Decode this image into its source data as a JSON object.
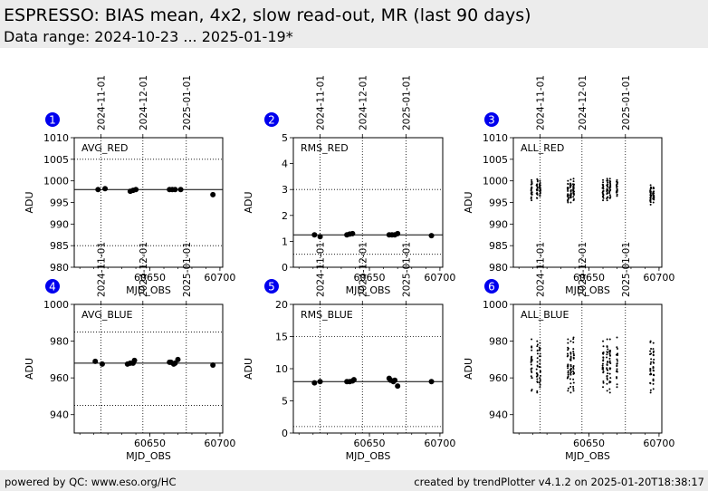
{
  "header": {
    "title": "ESPRESSO: BIAS mean, 4x2, slow read-out, MR (last 90 days)",
    "subtitle": "Data range: 2024-10-23 ... 2025-01-19*"
  },
  "footer": {
    "left": "powered by QC: www.eso.org/HC",
    "right": "created by trendPlotter v4.1.2 on 2025-01-20T18:38:17"
  },
  "colors": {
    "marker": "#000000",
    "badge": "#0000ee",
    "header_bg": "#ececec"
  },
  "chart_data": [
    {
      "type": "scatter",
      "panel": "1",
      "label": "AVG_RED",
      "xlabel": "MJD_OBS",
      "ylabel": "ADU",
      "xlim": [
        60596,
        60702
      ],
      "ylim": [
        980,
        1010
      ],
      "yticks": [
        980,
        985,
        990,
        995,
        1000,
        1005,
        1010
      ],
      "xticks": [
        60650,
        60700
      ],
      "date_ticks": [
        {
          "mjd": 60615,
          "label": "2024-11-01"
        },
        {
          "mjd": 60645,
          "label": "2024-12-01"
        },
        {
          "mjd": 60676,
          "label": "2025-01-01"
        }
      ],
      "ref_line": 998.0,
      "hlines": [
        985,
        1005
      ],
      "x": [
        60613,
        60618,
        60636,
        60638,
        60640,
        60664,
        60666,
        60668,
        60672,
        60695
      ],
      "y": [
        998.0,
        998.2,
        997.6,
        997.8,
        998.0,
        998.0,
        998.0,
        998.0,
        998.0,
        996.8
      ],
      "style": "large"
    },
    {
      "type": "scatter",
      "panel": "2",
      "label": "RMS_RED",
      "xlabel": "MJD_OBS",
      "ylabel": "ADU",
      "xlim": [
        60596,
        60702
      ],
      "ylim": [
        0,
        5
      ],
      "yticks": [
        0,
        1,
        2,
        3,
        4,
        5
      ],
      "xticks": [
        60650,
        60700
      ],
      "date_ticks": [
        {
          "mjd": 60615,
          "label": "2024-11-01"
        },
        {
          "mjd": 60645,
          "label": "2024-12-01"
        },
        {
          "mjd": 60676,
          "label": "2025-01-01"
        }
      ],
      "ref_line": 1.25,
      "hlines": [
        0.5,
        3.0
      ],
      "x": [
        60611,
        60615,
        60634,
        60636,
        60638,
        60664,
        60666,
        60668,
        60670,
        60694
      ],
      "y": [
        1.25,
        1.18,
        1.25,
        1.28,
        1.3,
        1.25,
        1.25,
        1.25,
        1.3,
        1.22
      ],
      "style": "large"
    },
    {
      "type": "scatter",
      "panel": "3",
      "label": "ALL_RED",
      "xlabel": "MJD_OBS",
      "ylabel": "ADU",
      "xlim": [
        60596,
        60702
      ],
      "ylim": [
        980,
        1010
      ],
      "yticks": [
        980,
        985,
        990,
        995,
        1000,
        1005,
        1010
      ],
      "xticks": [
        60650,
        60700
      ],
      "date_ticks": [
        {
          "mjd": 60615,
          "label": "2024-11-01"
        },
        {
          "mjd": 60645,
          "label": "2024-12-01"
        },
        {
          "mjd": 60676,
          "label": "2025-01-01"
        }
      ],
      "ref_line": null,
      "hlines": [],
      "groups": [
        {
          "x": 60609,
          "min": 995.5,
          "max": 1000.2
        },
        {
          "x": 60613,
          "min": 996.0,
          "max": 1000.4
        },
        {
          "x": 60615,
          "min": 996.5,
          "max": 1000.0
        },
        {
          "x": 60635,
          "min": 995.0,
          "max": 1000.0
        },
        {
          "x": 60637,
          "min": 995.0,
          "max": 1000.3
        },
        {
          "x": 60639,
          "min": 995.5,
          "max": 1000.5
        },
        {
          "x": 60660,
          "min": 995.5,
          "max": 1000.2
        },
        {
          "x": 60663,
          "min": 995.5,
          "max": 1000.5
        },
        {
          "x": 60665,
          "min": 996.0,
          "max": 1000.5
        },
        {
          "x": 60670,
          "min": 996.5,
          "max": 1000.2
        },
        {
          "x": 60694,
          "min": 994.5,
          "max": 999.0
        },
        {
          "x": 60696,
          "min": 995.0,
          "max": 998.5
        }
      ],
      "style": "small"
    },
    {
      "type": "scatter",
      "panel": "4",
      "label": "AVG_BLUE",
      "xlabel": "MJD_OBS",
      "ylabel": "ADU",
      "xlim": [
        60596,
        60702
      ],
      "ylim": [
        930,
        1000
      ],
      "yticks": [
        940,
        960,
        980,
        1000
      ],
      "xticks": [
        60650,
        60700
      ],
      "date_ticks": [
        {
          "mjd": 60615,
          "label": "2024-11-01"
        },
        {
          "mjd": 60645,
          "label": "2024-12-01"
        },
        {
          "mjd": 60676,
          "label": "2025-01-01"
        }
      ],
      "ref_line": 968.0,
      "hlines": [
        945,
        985
      ],
      "x": [
        60611,
        60616,
        60634,
        60636,
        60638,
        60639,
        60664,
        60665,
        60667,
        60668,
        60670,
        60695
      ],
      "y": [
        969.0,
        967.5,
        967.5,
        968.0,
        968.0,
        969.5,
        968.5,
        968.5,
        967.5,
        968.0,
        970.0,
        967.0
      ],
      "style": "large"
    },
    {
      "type": "scatter",
      "panel": "5",
      "label": "RMS_BLUE",
      "xlabel": "MJD_OBS",
      "ylabel": "ADU",
      "xlim": [
        60596,
        60702
      ],
      "ylim": [
        0,
        20
      ],
      "yticks": [
        0,
        5,
        10,
        15,
        20
      ],
      "xticks": [
        60650,
        60700
      ],
      "date_ticks": [
        {
          "mjd": 60615,
          "label": "2024-11-01"
        },
        {
          "mjd": 60645,
          "label": "2024-12-01"
        },
        {
          "mjd": 60676,
          "label": "2025-01-01"
        }
      ],
      "ref_line": 8.0,
      "hlines": [
        1.0,
        15.0
      ],
      "x": [
        60611,
        60615,
        60634,
        60636,
        60638,
        60639,
        60664,
        60665,
        60667,
        60668,
        60670,
        60694
      ],
      "y": [
        7.8,
        8.0,
        8.0,
        8.0,
        8.1,
        8.3,
        8.5,
        8.2,
        8.0,
        8.2,
        7.3,
        8.0
      ],
      "style": "large"
    },
    {
      "type": "scatter",
      "panel": "6",
      "label": "ALL_BLUE",
      "xlabel": "MJD_OBS",
      "ylabel": "ADU",
      "xlim": [
        60596,
        60702
      ],
      "ylim": [
        930,
        1000
      ],
      "yticks": [
        940,
        960,
        980,
        1000
      ],
      "xticks": [
        60650,
        60700
      ],
      "date_ticks": [
        {
          "mjd": 60615,
          "label": "2024-11-01"
        },
        {
          "mjd": 60645,
          "label": "2024-12-01"
        },
        {
          "mjd": 60676,
          "label": "2025-01-01"
        }
      ],
      "ref_line": null,
      "hlines": [],
      "groups": [
        {
          "x": 60609,
          "min": 953.0,
          "max": 981.0
        },
        {
          "x": 60613,
          "min": 952.0,
          "max": 980.0
        },
        {
          "x": 60615,
          "min": 955.0,
          "max": 979.0
        },
        {
          "x": 60635,
          "min": 953.0,
          "max": 981.0
        },
        {
          "x": 60637,
          "min": 952.0,
          "max": 980.0
        },
        {
          "x": 60639,
          "min": 953.0,
          "max": 982.0
        },
        {
          "x": 60660,
          "min": 955.0,
          "max": 980.0
        },
        {
          "x": 60663,
          "min": 953.0,
          "max": 981.0
        },
        {
          "x": 60665,
          "min": 952.0,
          "max": 981.0
        },
        {
          "x": 60670,
          "min": 955.0,
          "max": 982.0
        },
        {
          "x": 60694,
          "min": 952.0,
          "max": 980.0
        },
        {
          "x": 60696,
          "min": 954.0,
          "max": 979.0
        }
      ],
      "style": "small"
    }
  ]
}
